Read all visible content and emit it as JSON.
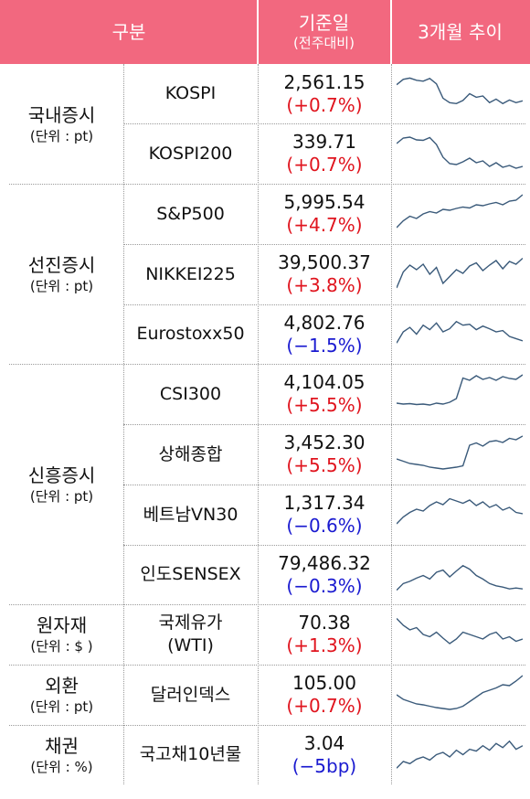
{
  "header": {
    "category": "구분",
    "value_title": "기준일",
    "value_sub": "(전주대비)",
    "trend": "3개월 추이"
  },
  "colors": {
    "header_bg": "#f2687f",
    "up": "#e0141e",
    "down": "#1a1ad0",
    "sparkline": "#3a5a7a"
  },
  "groups": [
    {
      "name": "국내증시",
      "unit": "(단위 : pt)"
    },
    {
      "name": "선진증시",
      "unit": "(단위 : pt)"
    },
    {
      "name": "신흥증시",
      "unit": "(단위 : pt)"
    },
    {
      "name": "원자재",
      "unit": "(단위 : $ )"
    },
    {
      "name": "외환",
      "unit": "(단위 : pt)"
    },
    {
      "name": "채권",
      "unit": "(단위 : %)"
    }
  ],
  "rows": [
    {
      "item": "KOSPI",
      "value": "2,561.15",
      "change": "(+0.7%)",
      "direction": "up",
      "trend": [
        0.7,
        0.82,
        0.85,
        0.8,
        0.78,
        0.84,
        0.72,
        0.4,
        0.3,
        0.28,
        0.35,
        0.5,
        0.42,
        0.45,
        0.3,
        0.38,
        0.28,
        0.36,
        0.3,
        0.34
      ]
    },
    {
      "item": "KOSPI200",
      "value": "339.71",
      "change": "(+0.7%)",
      "direction": "up",
      "trend": [
        0.72,
        0.84,
        0.86,
        0.8,
        0.79,
        0.85,
        0.7,
        0.42,
        0.28,
        0.26,
        0.32,
        0.4,
        0.3,
        0.34,
        0.22,
        0.3,
        0.2,
        0.24,
        0.18,
        0.22
      ]
    },
    {
      "item": "S&P500",
      "value": "5,995.54",
      "change": "(+4.7%)",
      "direction": "up",
      "trend": [
        0.2,
        0.35,
        0.45,
        0.4,
        0.5,
        0.55,
        0.52,
        0.6,
        0.58,
        0.62,
        0.65,
        0.63,
        0.7,
        0.68,
        0.72,
        0.75,
        0.7,
        0.78,
        0.8,
        0.92
      ]
    },
    {
      "item": "NIKKEI225",
      "value": "39,500.37",
      "change": "(+3.8%)",
      "direction": "up",
      "trend": [
        0.2,
        0.55,
        0.7,
        0.6,
        0.72,
        0.5,
        0.65,
        0.3,
        0.45,
        0.6,
        0.52,
        0.68,
        0.75,
        0.58,
        0.7,
        0.8,
        0.62,
        0.78,
        0.72,
        0.85
      ]
    },
    {
      "item": "Eurostoxx50",
      "value": "4,802.76",
      "change": "(−1.5%)",
      "direction": "down",
      "trend": [
        0.3,
        0.55,
        0.65,
        0.5,
        0.7,
        0.6,
        0.75,
        0.55,
        0.62,
        0.78,
        0.7,
        0.72,
        0.6,
        0.68,
        0.62,
        0.55,
        0.58,
        0.45,
        0.4,
        0.35
      ]
    },
    {
      "item": "CSI300",
      "value": "4,104.05",
      "change": "(+5.5%)",
      "direction": "up",
      "trend": [
        0.3,
        0.28,
        0.29,
        0.27,
        0.28,
        0.26,
        0.3,
        0.28,
        0.32,
        0.4,
        0.85,
        0.8,
        0.9,
        0.82,
        0.86,
        0.8,
        0.88,
        0.84,
        0.82,
        0.92
      ]
    },
    {
      "item": "상해종합",
      "value": "3,452.30",
      "change": "(+5.5%)",
      "direction": "up",
      "trend": [
        0.4,
        0.35,
        0.3,
        0.28,
        0.26,
        0.22,
        0.2,
        0.18,
        0.2,
        0.22,
        0.25,
        0.7,
        0.75,
        0.68,
        0.78,
        0.8,
        0.76,
        0.85,
        0.82,
        0.9
      ]
    },
    {
      "item": "베트남VN30",
      "value": "1,317.34",
      "change": "(−0.6%)",
      "direction": "down",
      "trend": [
        0.3,
        0.45,
        0.55,
        0.62,
        0.58,
        0.7,
        0.78,
        0.72,
        0.85,
        0.8,
        0.75,
        0.82,
        0.7,
        0.78,
        0.66,
        0.72,
        0.6,
        0.66,
        0.55,
        0.52
      ]
    },
    {
      "item": "인도SENSEX",
      "value": "79,486.32",
      "change": "(−0.3%)",
      "direction": "down",
      "trend": [
        0.15,
        0.3,
        0.35,
        0.42,
        0.48,
        0.4,
        0.55,
        0.6,
        0.45,
        0.58,
        0.7,
        0.62,
        0.48,
        0.4,
        0.3,
        0.25,
        0.22,
        0.18,
        0.2,
        0.18
      ]
    },
    {
      "item": "국제유가\n(WTI)",
      "value": "70.38",
      "change": "(+1.3%)",
      "direction": "up",
      "trend": [
        0.85,
        0.7,
        0.6,
        0.65,
        0.5,
        0.45,
        0.55,
        0.42,
        0.3,
        0.4,
        0.55,
        0.5,
        0.45,
        0.4,
        0.5,
        0.55,
        0.4,
        0.45,
        0.35,
        0.4
      ]
    },
    {
      "item": "달러인덱스",
      "value": "105.00",
      "change": "(+0.7%)",
      "direction": "up",
      "trend": [
        0.5,
        0.4,
        0.35,
        0.3,
        0.28,
        0.25,
        0.22,
        0.2,
        0.18,
        0.2,
        0.25,
        0.35,
        0.45,
        0.55,
        0.6,
        0.65,
        0.72,
        0.7,
        0.8,
        0.92
      ]
    },
    {
      "item": "국고채10년물",
      "value": "3.04",
      "change": "(−5bp)",
      "direction": "down",
      "trend": [
        0.2,
        0.35,
        0.3,
        0.4,
        0.45,
        0.38,
        0.5,
        0.55,
        0.45,
        0.6,
        0.5,
        0.62,
        0.58,
        0.7,
        0.6,
        0.75,
        0.66,
        0.8,
        0.62,
        0.7
      ]
    }
  ]
}
